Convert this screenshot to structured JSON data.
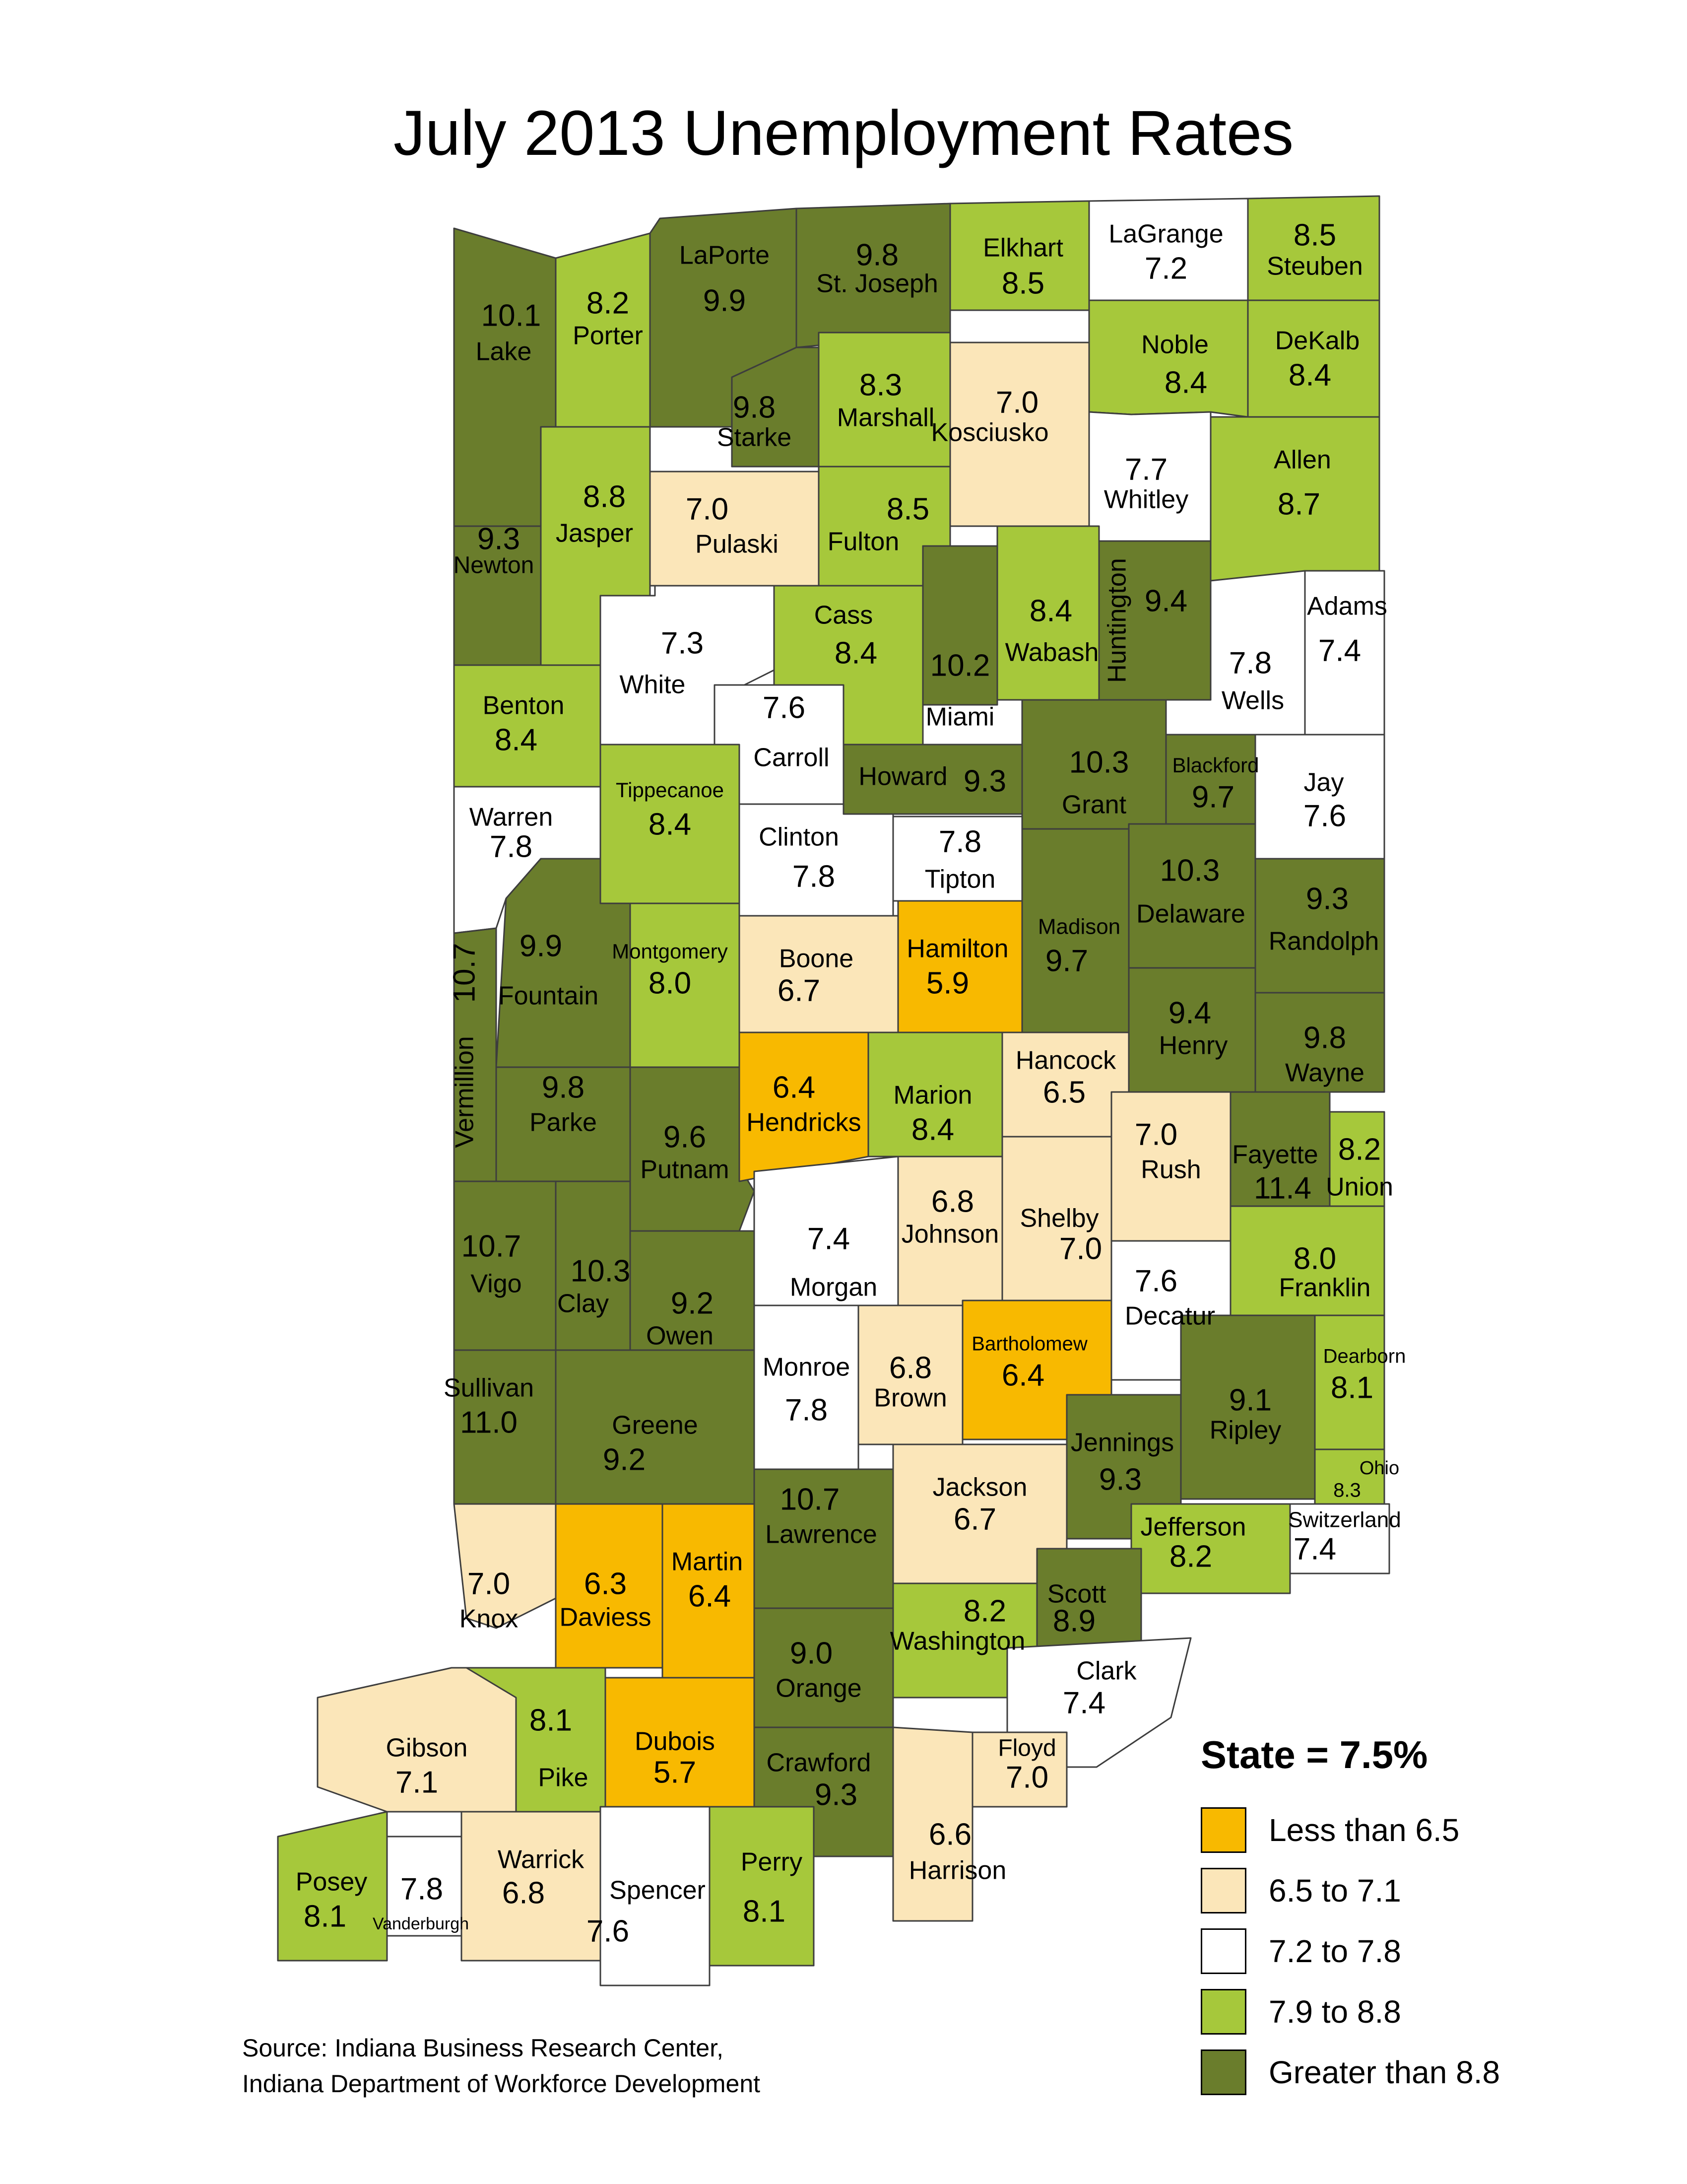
{
  "title": "July 2013 Unemployment Rates",
  "legend": {
    "title": "State = 7.5%",
    "items": [
      {
        "label": "Less than 6.5",
        "color": "#f8b900"
      },
      {
        "label": "6.5 to 7.1",
        "color": "#fbe6b9"
      },
      {
        "label": "7.2 to 7.8",
        "color": "#ffffff"
      },
      {
        "label": "7.9 to 8.8",
        "color": "#a6c83b"
      },
      {
        "label": "Greater than 8.8",
        "color": "#6a7d2c"
      }
    ]
  },
  "source": {
    "line1": "Source: Indiana Business Research Center,",
    "line2": "Indiana Department of Workforce Development"
  },
  "counties": [
    {
      "name": "Lake",
      "value": "10.1"
    },
    {
      "name": "Porter",
      "value": "8.2"
    },
    {
      "name": "LaPorte",
      "value": "9.9"
    },
    {
      "name": "St. Joseph",
      "value": "9.8"
    },
    {
      "name": "Elkhart",
      "value": "8.5"
    },
    {
      "name": "LaGrange",
      "value": "7.2"
    },
    {
      "name": "Steuben",
      "value": "8.5"
    },
    {
      "name": "Noble",
      "value": "8.4"
    },
    {
      "name": "DeKalb",
      "value": "8.4"
    },
    {
      "name": "Starke",
      "value": "9.8"
    },
    {
      "name": "Marshall",
      "value": "8.3"
    },
    {
      "name": "Kosciusko",
      "value": "7.0"
    },
    {
      "name": "Whitley",
      "value": "7.7"
    },
    {
      "name": "Allen",
      "value": "8.7"
    },
    {
      "name": "Newton",
      "value": "9.3"
    },
    {
      "name": "Jasper",
      "value": "8.8"
    },
    {
      "name": "Pulaski",
      "value": "7.0"
    },
    {
      "name": "Fulton",
      "value": "8.5"
    },
    {
      "name": "Miami",
      "value": "10.2"
    },
    {
      "name": "Wabash",
      "value": "8.4"
    },
    {
      "name": "Huntington",
      "value": "9.4"
    },
    {
      "name": "Wells",
      "value": "7.8"
    },
    {
      "name": "Adams",
      "value": "7.4"
    },
    {
      "name": "Benton",
      "value": "8.4"
    },
    {
      "name": "White",
      "value": "7.3"
    },
    {
      "name": "Carroll",
      "value": "7.6"
    },
    {
      "name": "Cass",
      "value": "8.4"
    },
    {
      "name": "Howard",
      "value": "9.3"
    },
    {
      "name": "Grant",
      "value": "10.3"
    },
    {
      "name": "Blackford",
      "value": "9.7"
    },
    {
      "name": "Jay",
      "value": "7.6"
    },
    {
      "name": "Warren",
      "value": "7.8"
    },
    {
      "name": "Tippecanoe",
      "value": "8.4"
    },
    {
      "name": "Clinton",
      "value": "7.8"
    },
    {
      "name": "Tipton",
      "value": "7.8"
    },
    {
      "name": "Madison",
      "value": "9.7"
    },
    {
      "name": "Delaware",
      "value": "10.3"
    },
    {
      "name": "Randolph",
      "value": "9.3"
    },
    {
      "name": "Fountain",
      "value": "9.9"
    },
    {
      "name": "Vermillion",
      "value": "10.7"
    },
    {
      "name": "Montgomery",
      "value": "8.0"
    },
    {
      "name": "Boone",
      "value": "6.7"
    },
    {
      "name": "Hamilton",
      "value": "5.9"
    },
    {
      "name": "Henry",
      "value": "9.4"
    },
    {
      "name": "Wayne",
      "value": "9.8"
    },
    {
      "name": "Parke",
      "value": "9.8"
    },
    {
      "name": "Putnam",
      "value": "9.6"
    },
    {
      "name": "Hendricks",
      "value": "6.4"
    },
    {
      "name": "Marion",
      "value": "8.4"
    },
    {
      "name": "Hancock",
      "value": "6.5"
    },
    {
      "name": "Rush",
      "value": "7.0"
    },
    {
      "name": "Fayette",
      "value": "11.4"
    },
    {
      "name": "Union",
      "value": "8.2"
    },
    {
      "name": "Vigo",
      "value": "10.7"
    },
    {
      "name": "Clay",
      "value": "10.3"
    },
    {
      "name": "Owen",
      "value": "9.2"
    },
    {
      "name": "Morgan",
      "value": "7.4"
    },
    {
      "name": "Johnson",
      "value": "6.8"
    },
    {
      "name": "Shelby",
      "value": "7.0"
    },
    {
      "name": "Decatur",
      "value": "7.6"
    },
    {
      "name": "Franklin",
      "value": "8.0"
    },
    {
      "name": "Sullivan",
      "value": "11.0"
    },
    {
      "name": "Greene",
      "value": "9.2"
    },
    {
      "name": "Monroe",
      "value": "7.8"
    },
    {
      "name": "Brown",
      "value": "6.8"
    },
    {
      "name": "Bartholomew",
      "value": "6.4"
    },
    {
      "name": "Jennings",
      "value": "9.3"
    },
    {
      "name": "Ripley",
      "value": "9.1"
    },
    {
      "name": "Dearborn",
      "value": "8.1"
    },
    {
      "name": "Ohio",
      "value": "8.3"
    },
    {
      "name": "Lawrence",
      "value": "10.7"
    },
    {
      "name": "Jackson",
      "value": "6.7"
    },
    {
      "name": "Jefferson",
      "value": "8.2"
    },
    {
      "name": "Switzerland",
      "value": "7.4"
    },
    {
      "name": "Knox",
      "value": "7.0"
    },
    {
      "name": "Daviess",
      "value": "6.3"
    },
    {
      "name": "Martin",
      "value": "6.4"
    },
    {
      "name": "Orange",
      "value": "9.0"
    },
    {
      "name": "Washington",
      "value": "8.2"
    },
    {
      "name": "Scott",
      "value": "8.9"
    },
    {
      "name": "Clark",
      "value": "7.4"
    },
    {
      "name": "Gibson",
      "value": "7.1"
    },
    {
      "name": "Pike",
      "value": "8.1"
    },
    {
      "name": "Dubois",
      "value": "5.7"
    },
    {
      "name": "Crawford",
      "value": "9.3"
    },
    {
      "name": "Floyd",
      "value": "7.0"
    },
    {
      "name": "Harrison",
      "value": "6.6"
    },
    {
      "name": "Posey",
      "value": "8.1"
    },
    {
      "name": "Vanderburgh",
      "value": "7.8"
    },
    {
      "name": "Warrick",
      "value": "6.8"
    },
    {
      "name": "Spencer",
      "value": "7.6"
    },
    {
      "name": "Perry",
      "value": "8.1"
    }
  ]
}
